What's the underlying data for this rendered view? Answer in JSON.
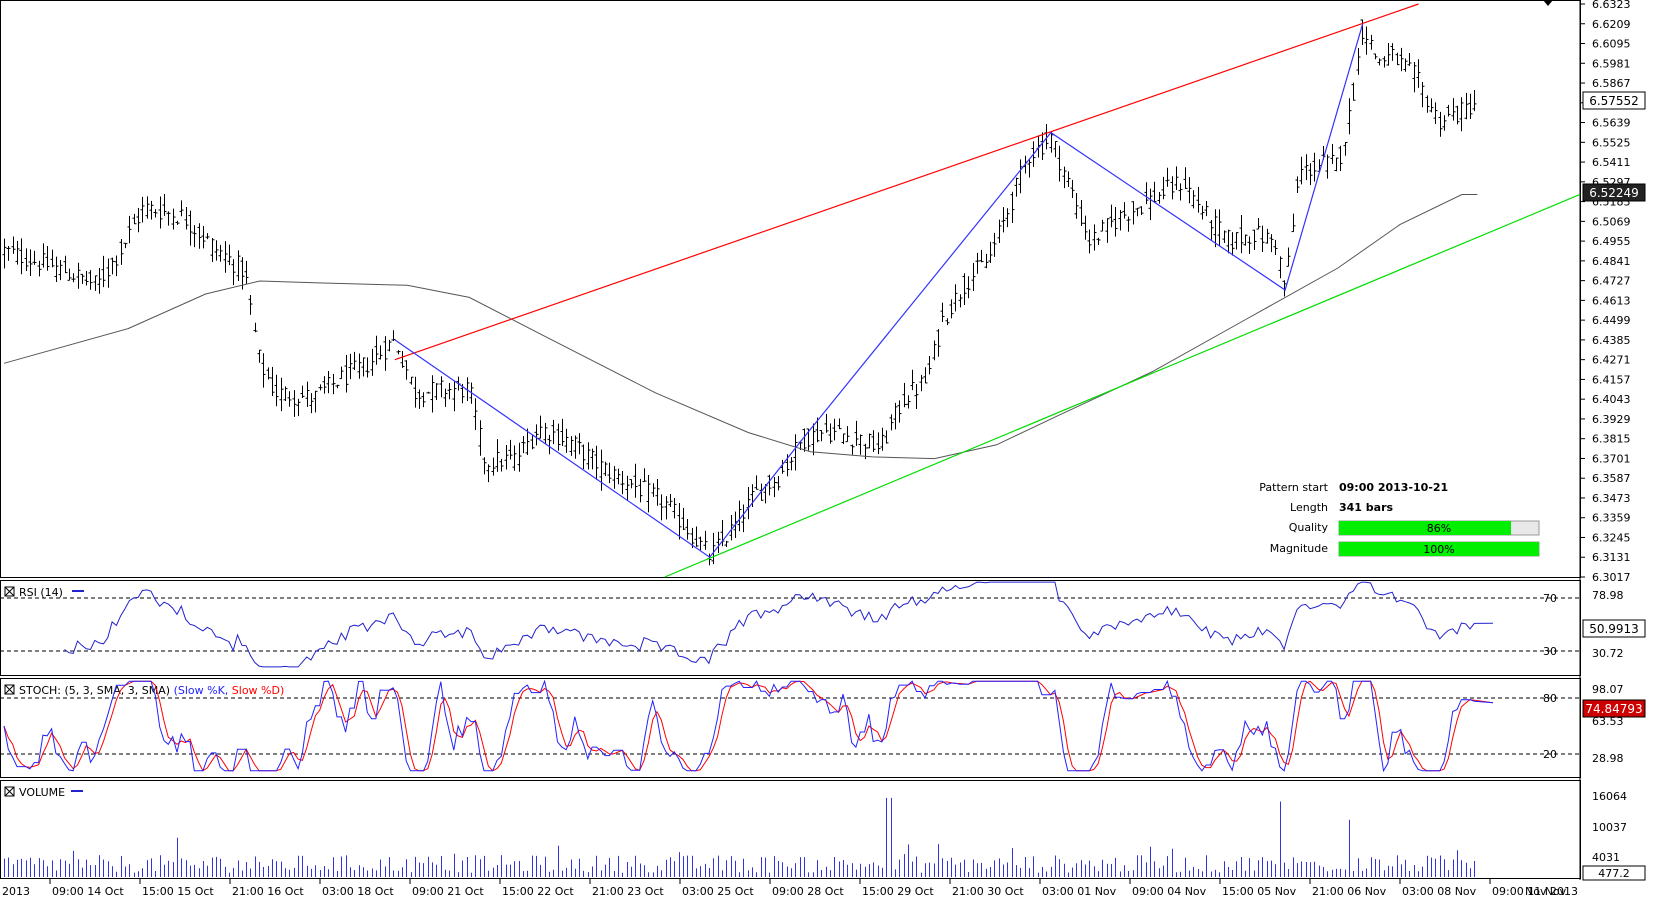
{
  "main_panel": {
    "price_ticks": [
      "6.6323",
      "6.6209",
      "6.6095",
      "6.5981",
      "6.5867",
      "6.5753",
      "6.5639",
      "6.5525",
      "6.5411",
      "6.5297",
      "6.5183",
      "6.5069",
      "6.4955",
      "6.4841",
      "6.4727",
      "6.4613",
      "6.4499",
      "6.4385",
      "6.4271",
      "6.4157",
      "6.4043",
      "6.3929",
      "6.3815",
      "6.3701",
      "6.3587",
      "6.3473",
      "6.3359",
      "6.3245",
      "6.3131",
      "6.3017"
    ],
    "current_price_label": "6.57552",
    "support_price_label": "6.52249"
  },
  "pattern_info": {
    "start_label": "Pattern start",
    "start_value": "09:00 2013-10-21",
    "length_label": "Length",
    "length_value": "341 bars",
    "quality_label": "Quality",
    "quality_value": "86%",
    "quality_fraction": 0.86,
    "magnitude_label": "Magnitude",
    "magnitude_value": "100%",
    "magnitude_fraction": 1.0
  },
  "rsi_panel": {
    "title": "RSI (14)",
    "upper_level": "70",
    "lower_level": "30",
    "scale_top": "78.98",
    "scale_bottom": "30.72",
    "current_value": "50.9913"
  },
  "stoch_panel": {
    "title_prefix": "STOCH: (5, 3, SMA, 3, SMA)",
    "k_label": "(Slow %K,",
    "d_label": "Slow %D)",
    "upper_level": "80",
    "lower_level": "20",
    "scale_top": "98.07",
    "scale_mid": "63.53",
    "scale_bottom": "28.98",
    "current_value": "74.84793"
  },
  "volume_panel": {
    "title": "VOLUME",
    "scale_labels": [
      "16064",
      "10037",
      "4031"
    ],
    "current_value": "477.2"
  },
  "time_axis": [
    "2013",
    "09:00 14 Oct",
    "15:00 15 Oct",
    "21:00 16 Oct",
    "03:00 18 Oct",
    "09:00 21 Oct",
    "15:00 22 Oct",
    "21:00 23 Oct",
    "03:00 25 Oct",
    "09:00 28 Oct",
    "15:00 29 Oct",
    "21:00 30 Oct",
    "03:00 01 Nov",
    "09:00 04 Nov",
    "15:00 05 Nov",
    "21:00 06 Nov",
    "03:00 08 Nov",
    "09:00 11 Nov",
    "Nov 2013"
  ],
  "colors": {
    "bars": "#000000",
    "moving_average": "#555555",
    "resistance_line": "#ff0000",
    "support_line": "#00dd00",
    "pattern_zigzag": "#3333ff",
    "rsi_line": "#2222cc",
    "stoch_k": "#2222ff",
    "stoch_d": "#ff0000",
    "volume_bars": "#3333dd",
    "progress_fill": "#00ee00"
  },
  "chart_data": {
    "type": "line",
    "title": "",
    "x_range": [
      "2013-10-11",
      "2013-11-12"
    ],
    "ylim": [
      6.3017,
      6.6323
    ],
    "pattern_points": [
      {
        "x": "09:00 2013-10-21",
        "y": 6.4385
      },
      {
        "x": "03:00 2013-10-25",
        "y": 6.3131
      },
      {
        "x": "09:00 2013-10-28",
        "y": 6.3815
      },
      {
        "x": "03:00 2013-11-01",
        "y": 6.5581
      },
      {
        "x": "21:00 2013-11-06",
        "y": 6.4673
      },
      {
        "x": "03:00 2013-11-08",
        "y": 6.6209
      }
    ],
    "resistance_line": {
      "start": 6.4271,
      "end": 6.6323
    },
    "support_line": {
      "start": 6.3017,
      "end": 6.5224
    },
    "last_price": 6.57552,
    "rsi_last": 50.9913,
    "stoch_last": 74.84793,
    "volume_last": 477.2,
    "volume_max_label": 16064
  }
}
